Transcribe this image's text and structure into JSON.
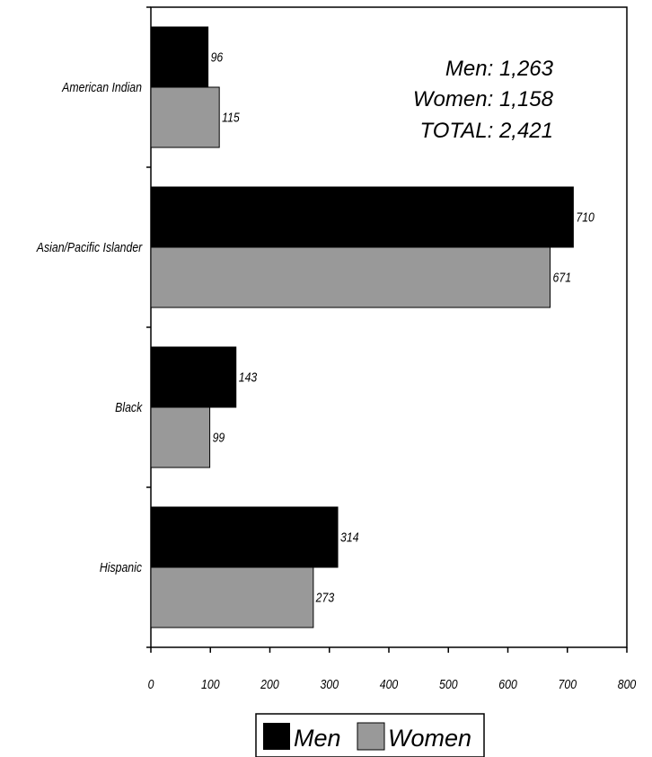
{
  "chart_data": {
    "type": "bar",
    "orientation": "horizontal",
    "categories": [
      "American Indian",
      "Asian/Pacific Islander",
      "Black",
      "Hispanic"
    ],
    "series": [
      {
        "name": "Men",
        "values": [
          96,
          710,
          143,
          314
        ],
        "color": "#000000"
      },
      {
        "name": "Women",
        "values": [
          115,
          671,
          99,
          273
        ],
        "color": "#999999"
      }
    ],
    "xlim": [
      0,
      800
    ],
    "xticks": [
      0,
      100,
      200,
      300,
      400,
      500,
      600,
      700,
      800
    ],
    "legend_position": "bottom",
    "grid": false,
    "totals": [
      {
        "label": "Men:",
        "value": "1,263"
      },
      {
        "label": "Women:",
        "value": "1,158"
      },
      {
        "label": "TOTAL:",
        "value": "2,421"
      }
    ]
  }
}
